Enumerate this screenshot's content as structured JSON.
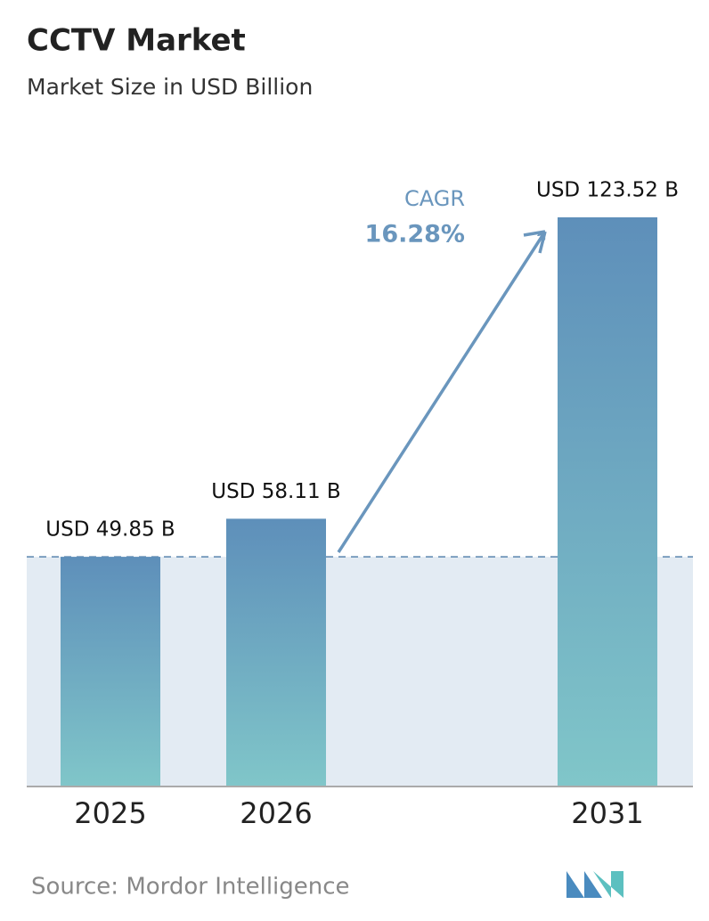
{
  "chart_data": {
    "type": "bar",
    "title": "CCTV Market",
    "subtitle": "Market Size in USD Billion",
    "categories": [
      "2025",
      "2026",
      "2031"
    ],
    "values": [
      49.85,
      58.11,
      123.52
    ],
    "value_labels": [
      "USD 49.85 B",
      "USD 58.11 B",
      "USD 123.52 B"
    ],
    "gradient": [
      "#5e8fba",
      "#80c6c9"
    ],
    "annotations": {
      "cagr_label": "CAGR",
      "cagr_value": "16.28%"
    },
    "source": "Source: Mordor Intelligence"
  }
}
